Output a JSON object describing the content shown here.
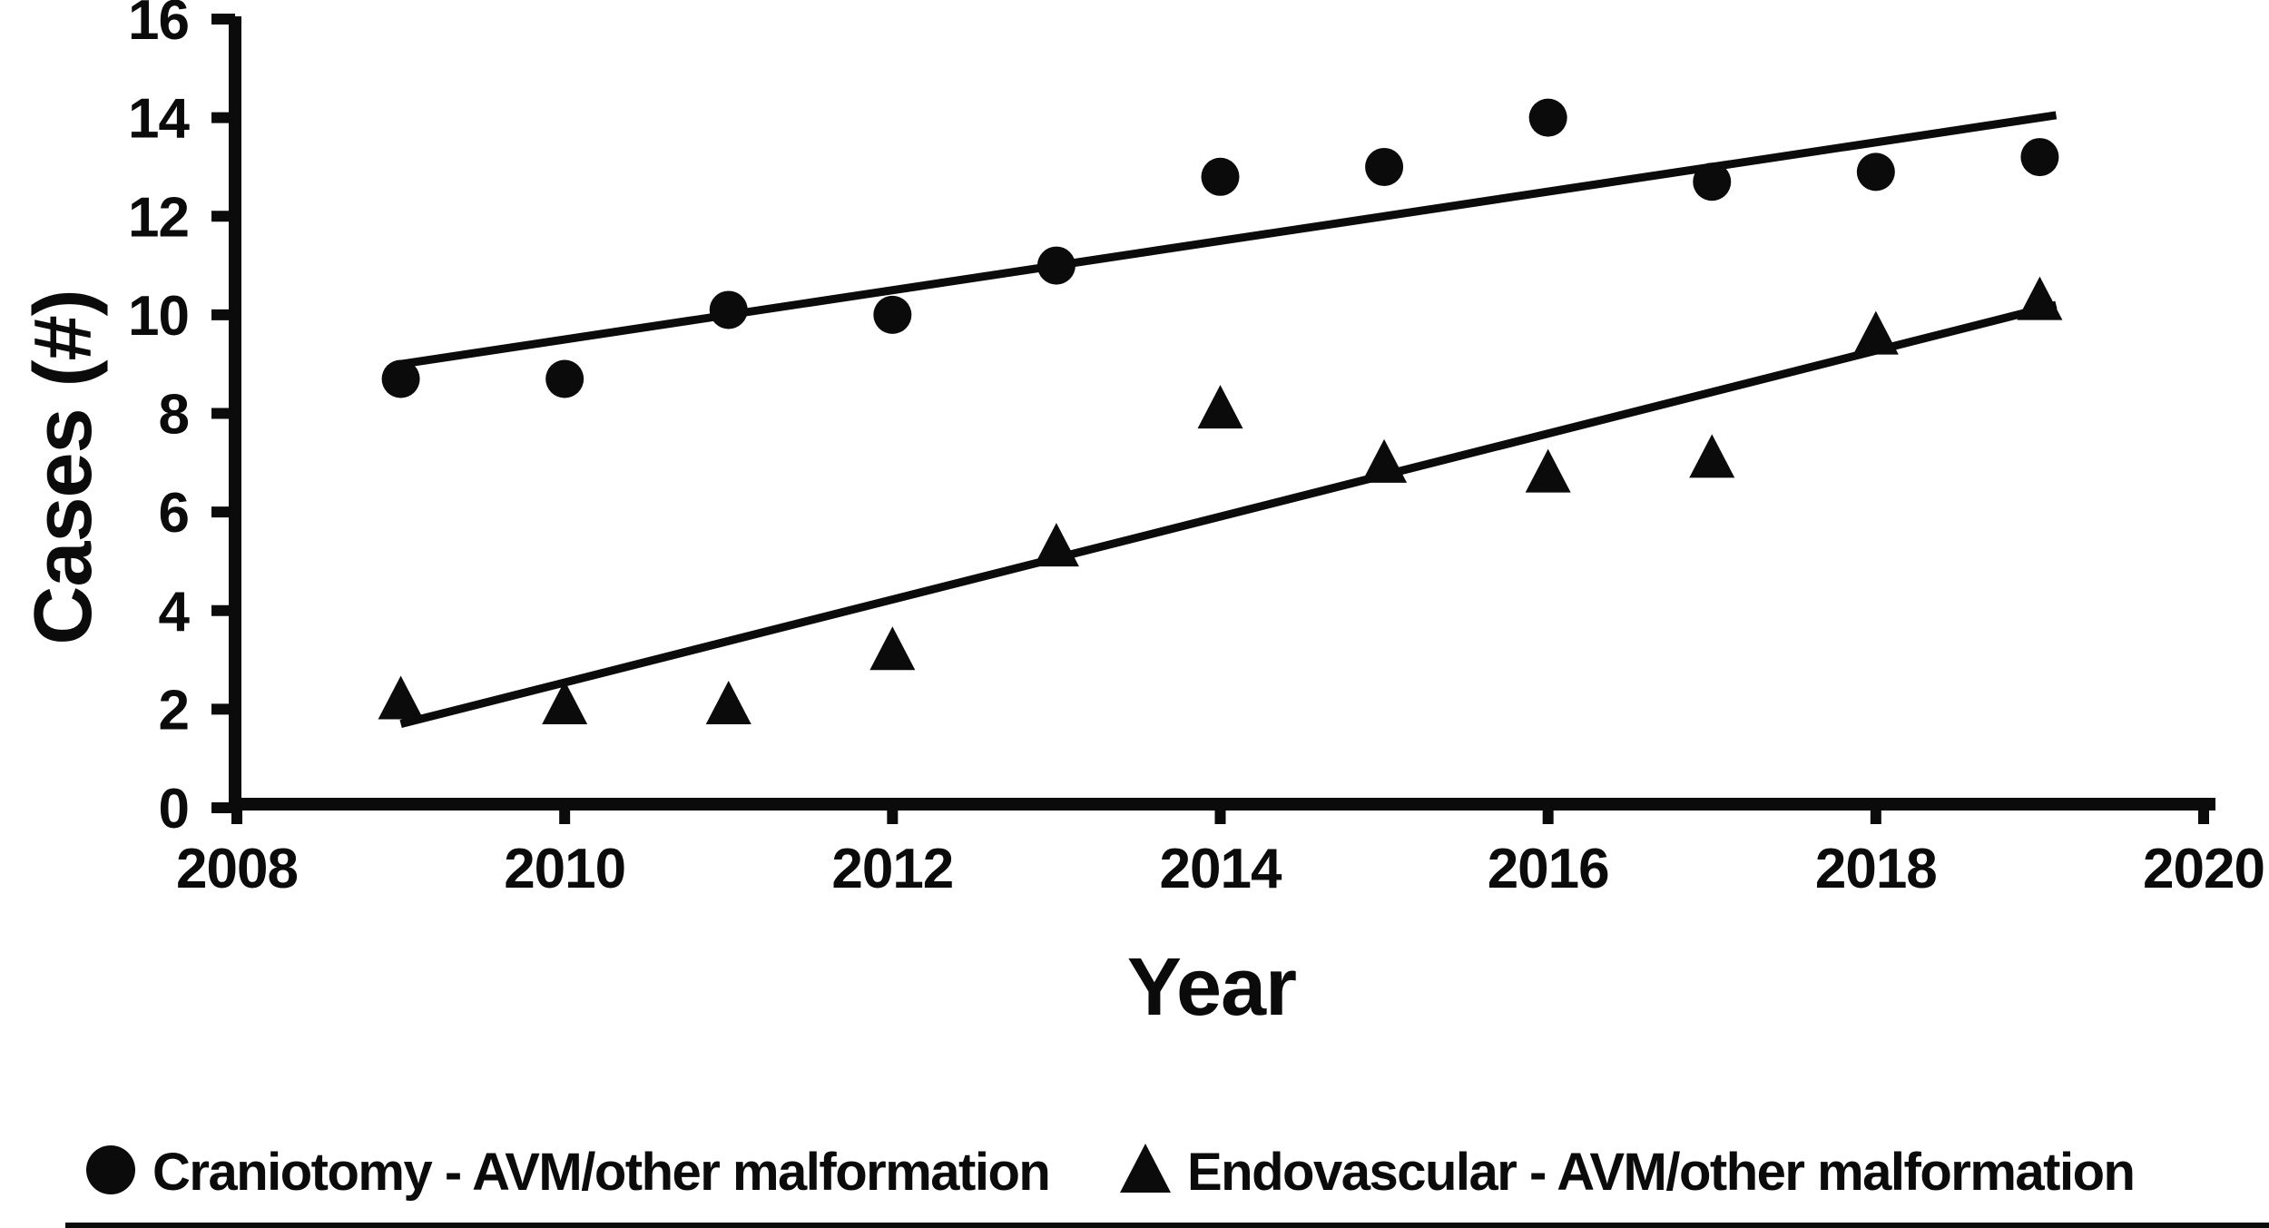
{
  "figure": {
    "background": "#ffffff",
    "ink_color": "#0b0b0b"
  },
  "chart_data": {
    "type": "scatter",
    "xlabel": "Year",
    "ylabel": "Cases (#)",
    "xlim": [
      2008,
      2020
    ],
    "ylim": [
      0,
      16
    ],
    "x_ticks": [
      2008,
      2010,
      2012,
      2014,
      2016,
      2018,
      2020
    ],
    "y_ticks": [
      0,
      2,
      4,
      6,
      8,
      10,
      12,
      14,
      16
    ],
    "grid": false,
    "legend_position": "bottom",
    "x": [
      2009,
      2010,
      2011,
      2012,
      2013,
      2014,
      2015,
      2016,
      2017,
      2018,
      2019
    ],
    "series": [
      {
        "name": "Craniotomy - AVM/other malformation",
        "marker": "circle",
        "values": [
          8.7,
          8.7,
          10.1,
          10.0,
          11.0,
          12.8,
          13.0,
          14.0,
          12.7,
          12.9,
          13.2
        ],
        "trendline": {
          "x1": 2009,
          "y1": 9.0,
          "x2": 2019.1,
          "y2": 14.05
        }
      },
      {
        "name": "Endovascular - AVM/other malformation",
        "marker": "triangle",
        "values": [
          2.2,
          2.1,
          2.1,
          3.2,
          5.3,
          8.1,
          7.0,
          6.8,
          7.1,
          9.6,
          10.3
        ],
        "trendline": {
          "x1": 2009,
          "y1": 1.7,
          "x2": 2019.1,
          "y2": 10.2
        }
      }
    ]
  }
}
